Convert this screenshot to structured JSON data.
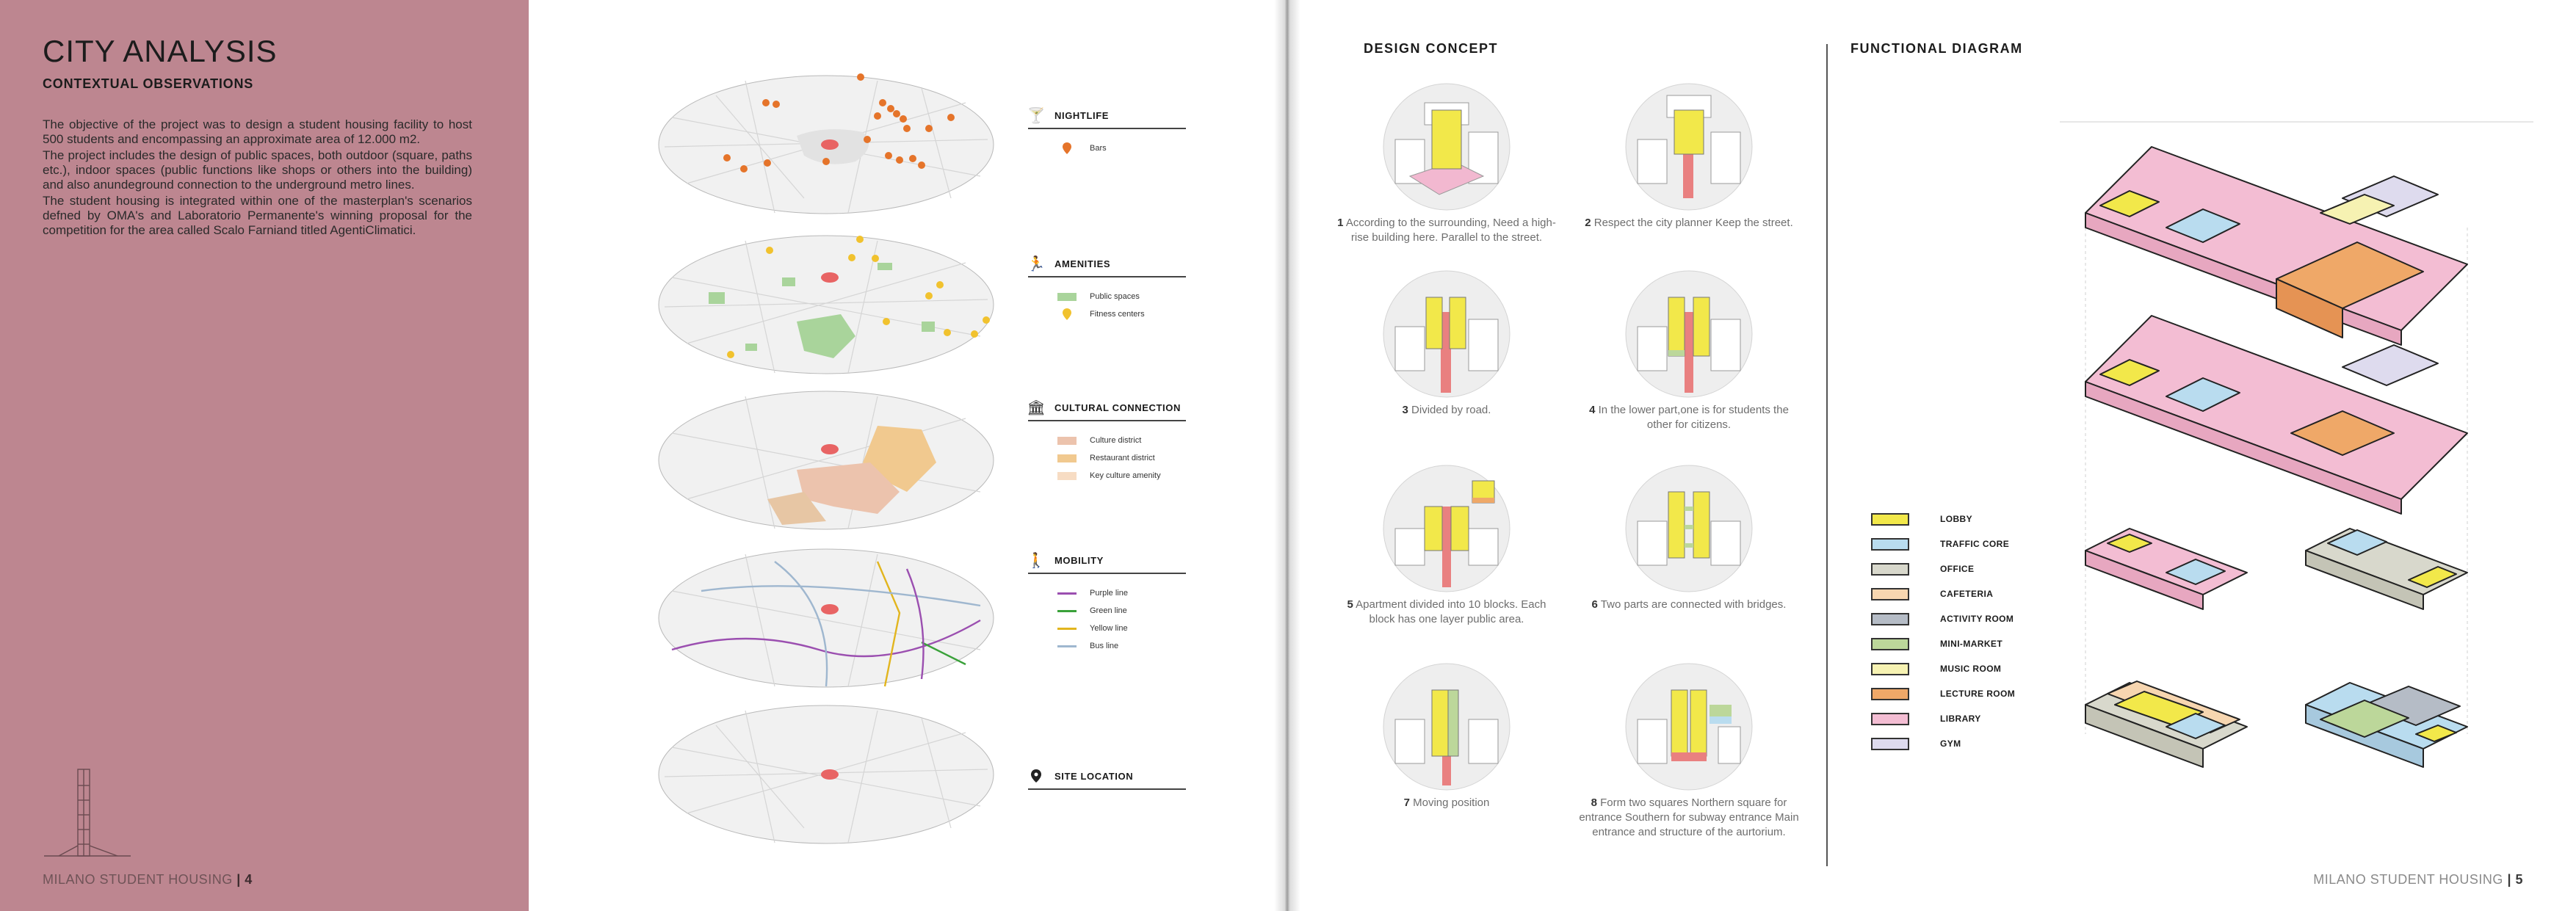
{
  "left_page": {
    "title": "CITY ANALYSIS",
    "subtitle": "CONTEXTUAL OBSERVATIONS",
    "paragraphs": [
      "The objective of the project was to design a student housing facility to host 500 students and encompassing an approximate area of 12.000 m2.",
      "The project includes the design of public spaces, both outdoor (square, paths etc.), indoor spaces (public functions like shops or others into the building) and also anundeground connection to the underground metro lines.",
      "The student housing is integrated within one of the masterplan's scenarios defned by OMA's and Laboratorio Permanente's winning proposal for the competition for the area called Scalo Farniand titled AgentiClimatici."
    ],
    "footer_text": "MILANO STUDENT HOUSING",
    "page_number": "| 4",
    "legends": [
      {
        "icon": "cocktail-icon",
        "title": "NIGHTLIFE",
        "items": [
          {
            "label": "Bars",
            "kind": "pin",
            "color": "#e5742a"
          }
        ]
      },
      {
        "icon": "running-icon",
        "title": "AMENITIES",
        "items": [
          {
            "label": "Public spaces",
            "kind": "box",
            "color": "#a9d49b"
          },
          {
            "label": "Fitness centers",
            "kind": "pin",
            "color": "#f1c22e"
          }
        ]
      },
      {
        "icon": "museum-icon",
        "title": "CULTURAL CONNECTION",
        "items": [
          {
            "label": "Culture district",
            "kind": "box",
            "color": "#ecc3ad"
          },
          {
            "label": "Restaurant district",
            "kind": "box",
            "color": "#f1c98f"
          },
          {
            "label": "Key culture amenity",
            "kind": "box",
            "color": "#f7dcc3"
          }
        ]
      },
      {
        "icon": "walking-icon",
        "title": "MOBILITY",
        "items": [
          {
            "label": "Purple line",
            "kind": "line",
            "color": "#9b4fb0"
          },
          {
            "label": "Green line",
            "kind": "line",
            "color": "#3aa13a"
          },
          {
            "label": "Yellow line",
            "kind": "line",
            "color": "#e2b51e"
          },
          {
            "label": "Bus line",
            "kind": "line",
            "color": "#9fb7cf"
          }
        ]
      },
      {
        "icon": "location-pin-icon",
        "title": "SITE LOCATION",
        "items": []
      }
    ]
  },
  "right_page": {
    "design_concept_title": "DESIGN CONCEPT",
    "functional_diagram_title": "FUNCTIONAL DIAGRAM",
    "concepts": [
      {
        "num": "1",
        "text": "According to the surrounding, Need a high-rise building here. Parallel to the street."
      },
      {
        "num": "2",
        "text": "Respect the city planner Keep the street."
      },
      {
        "num": "3",
        "text": "Divided by road."
      },
      {
        "num": "4",
        "text": "In the lower part,one is for students the other for citizens."
      },
      {
        "num": "5",
        "text": "Apartment divided into  10 blocks. Each block has one layer public area."
      },
      {
        "num": "6",
        "text": "Two parts are connected with bridges."
      },
      {
        "num": "7",
        "text": "Moving position"
      },
      {
        "num": "8",
        "text": "Form two squares Northern square for entrance Southern for subway entrance Main entrance and structure of the aurtorium."
      }
    ],
    "functions": [
      {
        "label": "LOBBY",
        "color": "#f2e84a"
      },
      {
        "label": "TRAFFIC CORE",
        "color": "#b9dcef"
      },
      {
        "label": "OFFICE",
        "color": "#d8d8cc"
      },
      {
        "label": "CAFETERIA",
        "color": "#f7d6b0"
      },
      {
        "label": "ACTIVITY ROOM",
        "color": "#b5bcc6"
      },
      {
        "label": "MINI-MARKET",
        "color": "#bcd79a"
      },
      {
        "label": "MUSIC ROOM",
        "color": "#f6f2b2"
      },
      {
        "label": "LECTURE ROOM",
        "color": "#efa868"
      },
      {
        "label": "LIBRARY",
        "color": "#f3bdd3"
      },
      {
        "label": "GYM",
        "color": "#dedbee"
      }
    ],
    "footer_text": "MILANO STUDENT HOUSING",
    "page_number": "| 5"
  }
}
